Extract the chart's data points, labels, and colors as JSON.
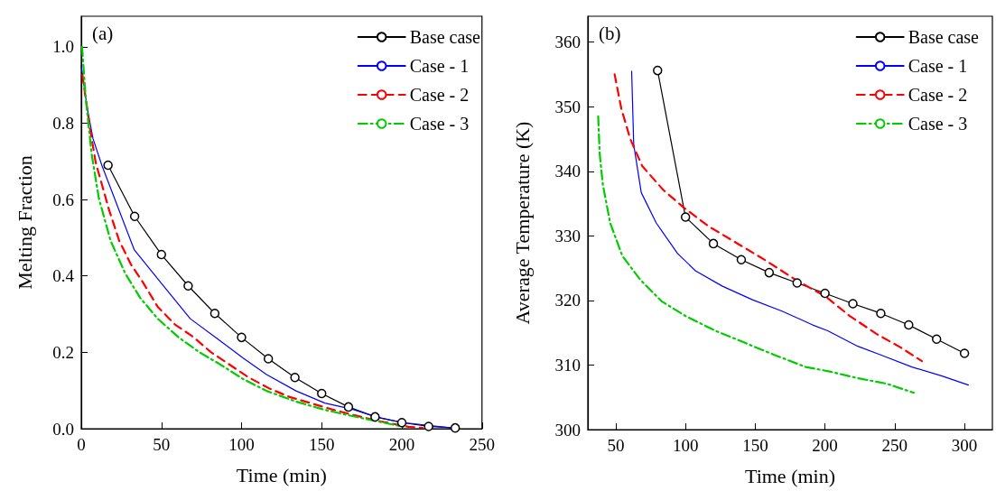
{
  "chart_data": [
    {
      "type": "line",
      "xlabel": "Time (min)",
      "ylabel": "Melting Fraction",
      "annotations": [
        "(a)"
      ],
      "legend": "top right",
      "grid": false,
      "xlim": [
        0,
        250
      ],
      "xticks": [
        0,
        50,
        100,
        150,
        200,
        250
      ],
      "ylim": [
        0,
        1.08
      ],
      "yticks": [
        {
          "value": 0,
          "label": "0.0"
        },
        {
          "value": 0.2,
          "label": "0.2"
        },
        {
          "value": 0.4,
          "label": "0.4"
        },
        {
          "value": 0.6,
          "label": "0.6"
        },
        {
          "value": 0.8,
          "label": "0.8"
        },
        {
          "value": 1,
          "label": "1.0"
        }
      ],
      "series": [
        {
          "name": "Base case",
          "color": "#000000",
          "marker": "circle",
          "line_style": "solid",
          "x": [
            16.7,
            33.3,
            50,
            66.7,
            83.3,
            100,
            116.7,
            133.3,
            150,
            166.7,
            183.3,
            200,
            216.7,
            233.3
          ],
          "values": [
            0.69,
            0.556,
            0.456,
            0.374,
            0.302,
            0.239,
            0.183,
            0.134,
            0.092,
            0.057,
            0.031,
            0.016,
            0.006,
            0.002
          ]
        },
        {
          "name": "Case - 1",
          "color": "#0000ff",
          "marker": "none",
          "line_style": "solid",
          "x": [
            0,
            3.7,
            7.3,
            12.8,
            33,
            49.5,
            68,
            86,
            101,
            115.6,
            134,
            152,
            169,
            185,
            201,
            231
          ],
          "values": [
            0.95,
            0.84,
            0.76,
            0.69,
            0.469,
            0.383,
            0.288,
            0.232,
            0.185,
            0.142,
            0.099,
            0.067,
            0.051,
            0.03,
            0.016,
            0.002
          ]
        },
        {
          "name": "Case - 2",
          "color": "#ff0000",
          "marker": "none",
          "line_style": "dashed",
          "x": [
            0.7,
            5.5,
            9,
            17.4,
            23.7,
            31,
            38.5,
            47.7,
            58.7,
            69.7,
            80.7,
            91.7,
            104.6,
            117,
            130,
            143,
            156,
            170.6,
            187,
            204,
            213
          ],
          "values": [
            0.926,
            0.785,
            0.697,
            0.572,
            0.492,
            0.43,
            0.383,
            0.319,
            0.272,
            0.241,
            0.201,
            0.17,
            0.134,
            0.106,
            0.083,
            0.067,
            0.051,
            0.035,
            0.019,
            0.005,
            0.002
          ]
        },
        {
          "name": "Case - 3",
          "color": "#00cc00",
          "marker": "none",
          "line_style": "dashdot",
          "x": [
            0.5,
            2.7,
            6.4,
            11,
            18.3,
            27.5,
            36.7,
            47.7,
            60.5,
            73.4,
            86,
            101,
            115.6,
            134,
            150.4,
            167,
            185,
            201
          ],
          "values": [
            1.0,
            0.87,
            0.721,
            0.603,
            0.492,
            0.406,
            0.343,
            0.288,
            0.24,
            0.201,
            0.17,
            0.13,
            0.099,
            0.071,
            0.051,
            0.035,
            0.019,
            0.005
          ]
        }
      ]
    },
    {
      "type": "line",
      "xlabel": "Time (min)",
      "ylabel": "Average Temperature (K)",
      "annotations": [
        "(b)"
      ],
      "legend": "top right",
      "grid": false,
      "xlim": [
        30,
        320
      ],
      "xticks": [
        50,
        100,
        150,
        200,
        250,
        300
      ],
      "ylim": [
        300,
        364
      ],
      "yticks": [
        300,
        310,
        320,
        330,
        340,
        350,
        360
      ],
      "series": [
        {
          "name": "Base case",
          "color": "#000000",
          "marker": "circle",
          "line_style": "solid",
          "x": [
            80,
            100,
            120,
            140,
            160,
            180,
            200,
            220,
            240,
            260,
            280,
            300
          ],
          "values": [
            355.6,
            332.9,
            328.8,
            326.3,
            324.3,
            322.7,
            321.1,
            319.5,
            318,
            316.2,
            314,
            311.8
          ]
        },
        {
          "name": "Case - 1",
          "color": "#0000ff",
          "marker": "none",
          "line_style": "solid",
          "x": [
            61.4,
            62.9,
            68.3,
            79,
            94.2,
            107.1,
            126.5,
            148,
            169.6,
            191.2,
            202,
            223.5,
            240.8,
            262.3,
            283.9,
            302.8
          ],
          "values": [
            355.5,
            344.1,
            336.7,
            332,
            327.3,
            324.6,
            322.2,
            320.1,
            318.3,
            316.2,
            315.3,
            312.9,
            311.5,
            309.7,
            308.3,
            306.9
          ]
        },
        {
          "name": "Case - 2",
          "color": "#ff0000",
          "marker": "none",
          "line_style": "dashed",
          "x": [
            49.2,
            54,
            60.4,
            69,
            84.1,
            99.2,
            116.4,
            135.8,
            157.4,
            178.9,
            200.5,
            217.7,
            237.1,
            254.4,
            269.5
          ],
          "values": [
            355,
            349.7,
            345,
            340.8,
            337.1,
            334.3,
            331.5,
            329,
            326.2,
            323.2,
            320.6,
            317.6,
            314.8,
            312.7,
            310.6
          ]
        },
        {
          "name": "Case - 3",
          "color": "#00cc00",
          "marker": "none",
          "line_style": "dashdot",
          "x": [
            37.4,
            38.5,
            40.7,
            46,
            54.7,
            67.6,
            82.7,
            99.9,
            121.4,
            143,
            164.5,
            186.1,
            203.3,
            222.7,
            244.3,
            263.7
          ],
          "values": [
            348.5,
            342.7,
            338,
            332,
            326.9,
            323.2,
            319.9,
            317.6,
            315.3,
            313.4,
            311.5,
            309.7,
            309,
            308,
            307.1,
            305.7
          ]
        }
      ]
    }
  ]
}
